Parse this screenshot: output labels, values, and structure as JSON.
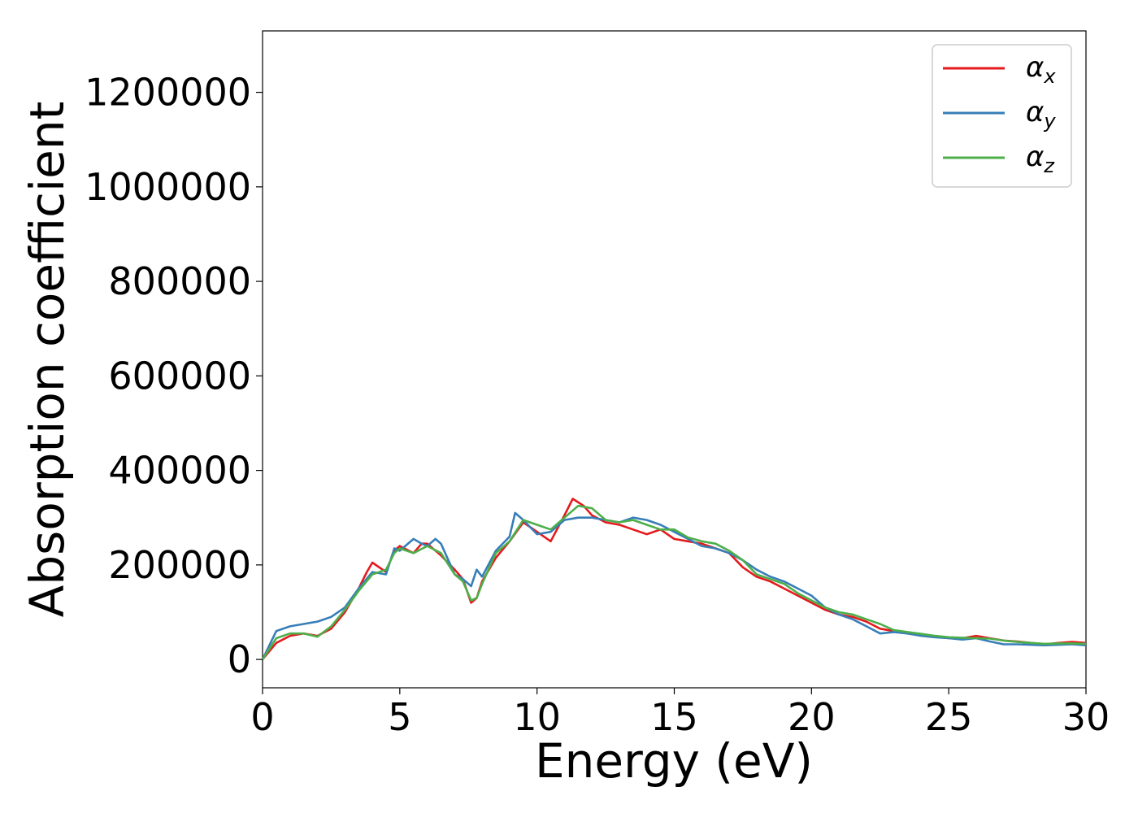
{
  "chart_data": {
    "type": "line",
    "title": "",
    "xlabel": "Energy (eV)",
    "ylabel": "Absorption coefficient",
    "xlim": [
      0,
      30
    ],
    "ylim": [
      -60000,
      1330000
    ],
    "xticks": [
      0,
      5,
      10,
      15,
      20,
      25,
      30
    ],
    "yticks": [
      0,
      200000,
      400000,
      600000,
      800000,
      1000000,
      1200000
    ],
    "grid": false,
    "legend_position": "top-right",
    "series": [
      {
        "name": "α",
        "subscript": "x",
        "color": "#e41a1c",
        "x": [
          0,
          0.5,
          1,
          1.5,
          2,
          2.5,
          3,
          3.5,
          3.8,
          4,
          4.5,
          4.8,
          5,
          5.5,
          5.8,
          6,
          6.5,
          7,
          7.3,
          7.6,
          7.8,
          8,
          8.5,
          9,
          9.5,
          10,
          10.5,
          11,
          11.3,
          11.7,
          12,
          12.5,
          13,
          13.5,
          14,
          14.5,
          15,
          15.5,
          16,
          16.5,
          17,
          17.5,
          18,
          18.5,
          19,
          19.5,
          20,
          20.5,
          21,
          21.5,
          22,
          22.5,
          23,
          23.5,
          24,
          24.5,
          25,
          25.5,
          26,
          26.5,
          27,
          27.5,
          28,
          28.5,
          29,
          29.5,
          30
        ],
        "y": [
          0,
          35000,
          50000,
          55000,
          50000,
          65000,
          100000,
          150000,
          185000,
          205000,
          185000,
          230000,
          240000,
          225000,
          245000,
          245000,
          220000,
          190000,
          170000,
          120000,
          130000,
          165000,
          215000,
          250000,
          290000,
          270000,
          250000,
          305000,
          340000,
          325000,
          305000,
          290000,
          285000,
          275000,
          265000,
          275000,
          255000,
          250000,
          245000,
          235000,
          225000,
          195000,
          175000,
          165000,
          150000,
          135000,
          120000,
          105000,
          95000,
          90000,
          80000,
          65000,
          60000,
          55000,
          52000,
          48000,
          45000,
          45000,
          50000,
          45000,
          40000,
          38000,
          35000,
          32000,
          35000,
          37000,
          35000
        ]
      },
      {
        "name": "α",
        "subscript": "y",
        "color": "#377eb8",
        "x": [
          0,
          0.5,
          1,
          1.5,
          2,
          2.5,
          3,
          3.5,
          4,
          4.5,
          4.8,
          5,
          5.5,
          5.8,
          6,
          6.3,
          6.5,
          7,
          7.3,
          7.6,
          7.8,
          8,
          8.5,
          9,
          9.2,
          9.5,
          10,
          10.5,
          11,
          11.5,
          12,
          12.5,
          13,
          13.5,
          14,
          14.5,
          15,
          15.5,
          16,
          16.5,
          17,
          17.5,
          18,
          18.5,
          19,
          19.5,
          20,
          20.5,
          21,
          21.5,
          22,
          22.5,
          23,
          23.5,
          24,
          24.5,
          25,
          25.5,
          26,
          26.5,
          27,
          27.5,
          28,
          28.5,
          29,
          29.5,
          30
        ],
        "y": [
          0,
          60000,
          70000,
          75000,
          80000,
          90000,
          110000,
          150000,
          185000,
          180000,
          235000,
          230000,
          255000,
          245000,
          240000,
          255000,
          245000,
          180000,
          170000,
          155000,
          190000,
          175000,
          230000,
          260000,
          310000,
          295000,
          265000,
          270000,
          295000,
          300000,
          300000,
          295000,
          290000,
          300000,
          295000,
          285000,
          270000,
          255000,
          240000,
          235000,
          225000,
          210000,
          190000,
          175000,
          165000,
          150000,
          135000,
          110000,
          95000,
          85000,
          70000,
          55000,
          58000,
          55000,
          50000,
          47000,
          45000,
          42000,
          45000,
          38000,
          32000,
          32000,
          31000,
          30000,
          31000,
          32000,
          30000
        ]
      },
      {
        "name": "α",
        "subscript": "z",
        "color": "#4daf4a",
        "x": [
          0,
          0.5,
          1,
          1.5,
          2,
          2.5,
          3,
          3.5,
          4,
          4.5,
          4.8,
          5,
          5.5,
          6,
          6.5,
          7,
          7.3,
          7.6,
          7.8,
          8,
          8.5,
          9,
          9.5,
          10,
          10.5,
          11,
          11.5,
          12,
          12.5,
          13,
          13.5,
          14,
          14.5,
          15,
          15.5,
          16,
          16.5,
          17,
          17.5,
          18,
          18.5,
          19,
          19.5,
          20,
          20.5,
          21,
          21.5,
          22,
          22.5,
          23,
          23.5,
          24,
          24.5,
          25,
          25.5,
          26,
          26.5,
          27,
          27.5,
          28,
          28.5,
          29,
          29.5,
          30
        ],
        "y": [
          0,
          45000,
          55000,
          55000,
          48000,
          70000,
          105000,
          145000,
          180000,
          190000,
          225000,
          235000,
          225000,
          240000,
          225000,
          180000,
          165000,
          125000,
          130000,
          160000,
          225000,
          250000,
          295000,
          285000,
          275000,
          300000,
          325000,
          320000,
          295000,
          290000,
          295000,
          285000,
          275000,
          275000,
          258000,
          250000,
          245000,
          230000,
          210000,
          180000,
          170000,
          160000,
          140000,
          125000,
          110000,
          100000,
          95000,
          85000,
          75000,
          62000,
          58000,
          54000,
          50000,
          47000,
          46000,
          45000,
          44000,
          40000,
          37000,
          35000,
          33000,
          34000,
          34000,
          33000
        ]
      }
    ]
  }
}
